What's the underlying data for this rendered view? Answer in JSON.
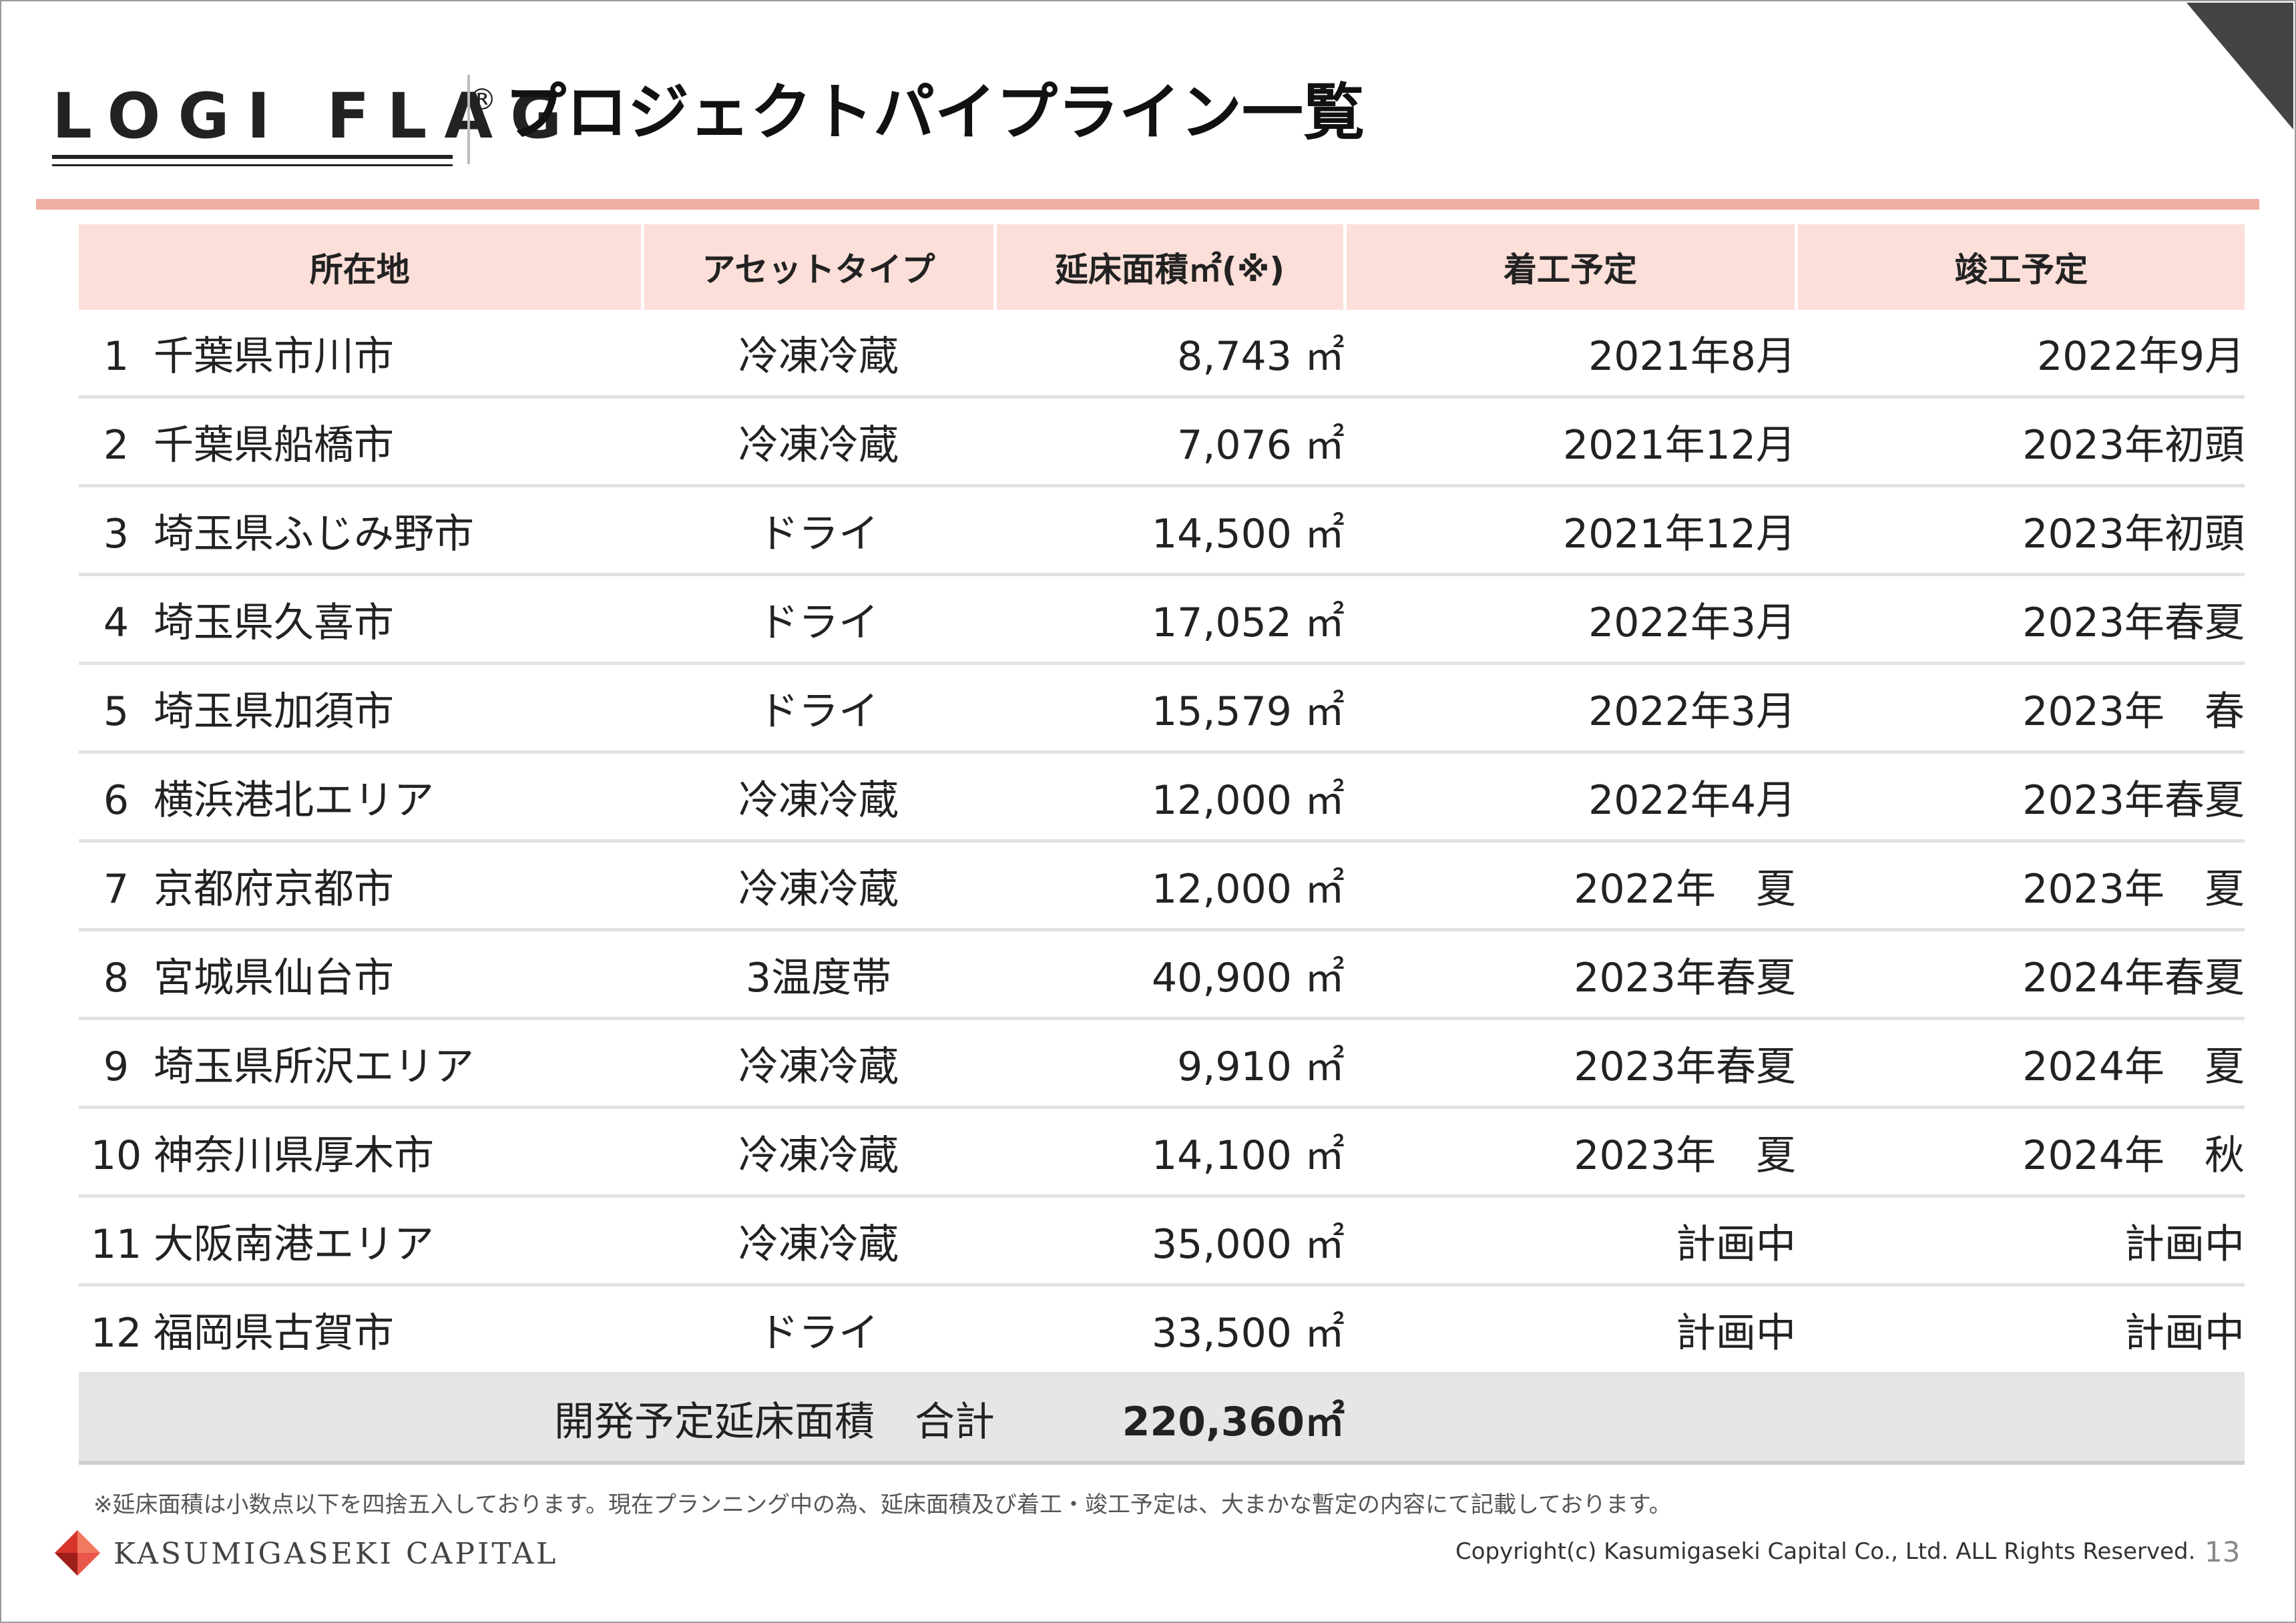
{
  "header": {
    "logo_text": "LOGI FLAG",
    "logo_mark": "®",
    "title": "プロジェクトパイプライン一覧"
  },
  "table": {
    "columns": [
      "所在地",
      "アセットタイプ",
      "延床面積㎡(※)",
      "着工予定",
      "竣工予定"
    ],
    "rows": [
      {
        "no": "1",
        "location": "千葉県市川市",
        "type": "冷凍冷蔵",
        "area": "8,743",
        "unit": "㎡",
        "start": "2021年8月",
        "end": "2022年9月"
      },
      {
        "no": "2",
        "location": "千葉県船橋市",
        "type": "冷凍冷蔵",
        "area": "7,076",
        "unit": "㎡",
        "start": "2021年12月",
        "end": "2023年初頭"
      },
      {
        "no": "3",
        "location": "埼玉県ふじみ野市",
        "type": "ドライ",
        "area": "14,500",
        "unit": "㎡",
        "start": "2021年12月",
        "end": "2023年初頭"
      },
      {
        "no": "4",
        "location": "埼玉県久喜市",
        "type": "ドライ",
        "area": "17,052",
        "unit": "㎡",
        "start": "2022年3月",
        "end": "2023年春夏"
      },
      {
        "no": "5",
        "location": "埼玉県加須市",
        "type": "ドライ",
        "area": "15,579",
        "unit": "㎡",
        "start": "2022年3月",
        "end": "2023年　春"
      },
      {
        "no": "6",
        "location": "横浜港北エリア",
        "type": "冷凍冷蔵",
        "area": "12,000",
        "unit": "㎡",
        "start": "2022年4月",
        "end": "2023年春夏"
      },
      {
        "no": "7",
        "location": "京都府京都市",
        "type": "冷凍冷蔵",
        "area": "12,000",
        "unit": "㎡",
        "start": "2022年　夏",
        "end": "2023年　夏"
      },
      {
        "no": "8",
        "location": "宮城県仙台市",
        "type": "3温度帯",
        "area": "40,900",
        "unit": "㎡",
        "start": "2023年春夏",
        "end": "2024年春夏"
      },
      {
        "no": "9",
        "location": "埼玉県所沢エリア",
        "type": "冷凍冷蔵",
        "area": "9,910",
        "unit": "㎡",
        "start": "2023年春夏",
        "end": "2024年　夏"
      },
      {
        "no": "10",
        "location": "神奈川県厚木市",
        "type": "冷凍冷蔵",
        "area": "14,100",
        "unit": "㎡",
        "start": "2023年　夏",
        "end": "2024年　秋"
      },
      {
        "no": "11",
        "location": "大阪南港エリア",
        "type": "冷凍冷蔵",
        "area": "35,000",
        "unit": "㎡",
        "start": "計画中",
        "end": "計画中"
      },
      {
        "no": "12",
        "location": "福岡県古賀市",
        "type": "ドライ",
        "area": "33,500",
        "unit": "㎡",
        "start": "計画中",
        "end": "計画中"
      }
    ],
    "total_label": "開発予定延床面積　合計",
    "total_value": "220,360㎡"
  },
  "footer": {
    "note": "※延床面積は小数点以下を四捨五入しております。現在プランニング中の為、延床面積及び着工・竣工予定は、大まかな暫定の内容にて記載しております。",
    "brand_name": "KASUMIGASEKI CAPITAL",
    "copyright": "Copyright(c) Kasumigaseki Capital Co., Ltd. ALL Rights Reserved.",
    "page_number": "13"
  },
  "colors": {
    "accent_rule": "#f0aea3",
    "header_fill": "#fbdfd8",
    "total_fill": "#e6e6e6",
    "brand_red": "#d9342b"
  }
}
